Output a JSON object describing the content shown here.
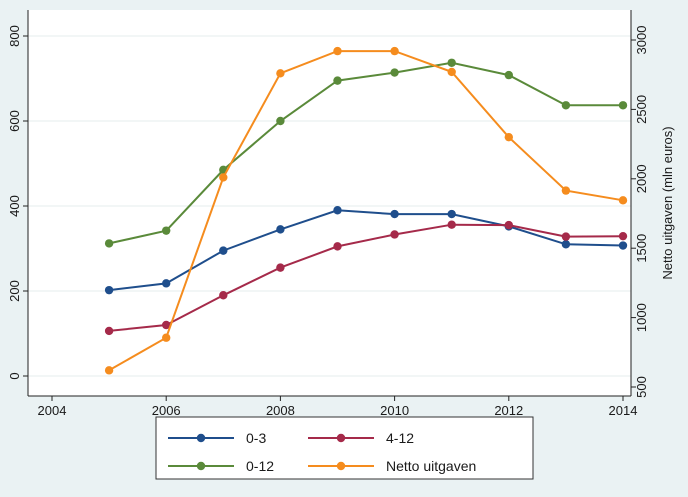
{
  "chart_data": {
    "type": "line",
    "title": "",
    "xlabel": "",
    "ylabel_left": "",
    "ylabel_right": "Netto uitgaven (mln euros)",
    "xlim": [
      2004,
      2014
    ],
    "ylim_left": [
      0,
      800
    ],
    "ylim_right": [
      500,
      3000
    ],
    "x_ticks": [
      2004,
      2006,
      2008,
      2010,
      2012,
      2014
    ],
    "y_ticks_left": [
      0,
      200,
      400,
      600,
      800
    ],
    "y_ticks_right": [
      500,
      1000,
      1500,
      2000,
      2500,
      3000
    ],
    "grid": true,
    "legend_position": "bottom",
    "x": [
      2005,
      2006,
      2007,
      2008,
      2009,
      2010,
      2011,
      2012,
      2013,
      2014
    ],
    "series": [
      {
        "name": "0-3",
        "axis": "left",
        "color": "#1f4e8c",
        "values": [
          202,
          218,
          295,
          345,
          390,
          381,
          381,
          352,
          310,
          307
        ]
      },
      {
        "name": "4-12",
        "axis": "left",
        "color": "#a52a4a",
        "values": [
          106,
          120,
          190,
          255,
          305,
          333,
          356,
          355,
          328,
          329
        ]
      },
      {
        "name": "0-12",
        "axis": "left",
        "color": "#5a8a3a",
        "values": [
          312,
          342,
          485,
          600,
          695,
          714,
          737,
          708,
          637,
          637
        ]
      },
      {
        "name": "Netto uitgaven",
        "axis": "right",
        "color": "#f58c1e",
        "values": [
          620,
          855,
          2010,
          2760,
          2920,
          2920,
          2770,
          2300,
          1915,
          1845
        ]
      }
    ]
  }
}
